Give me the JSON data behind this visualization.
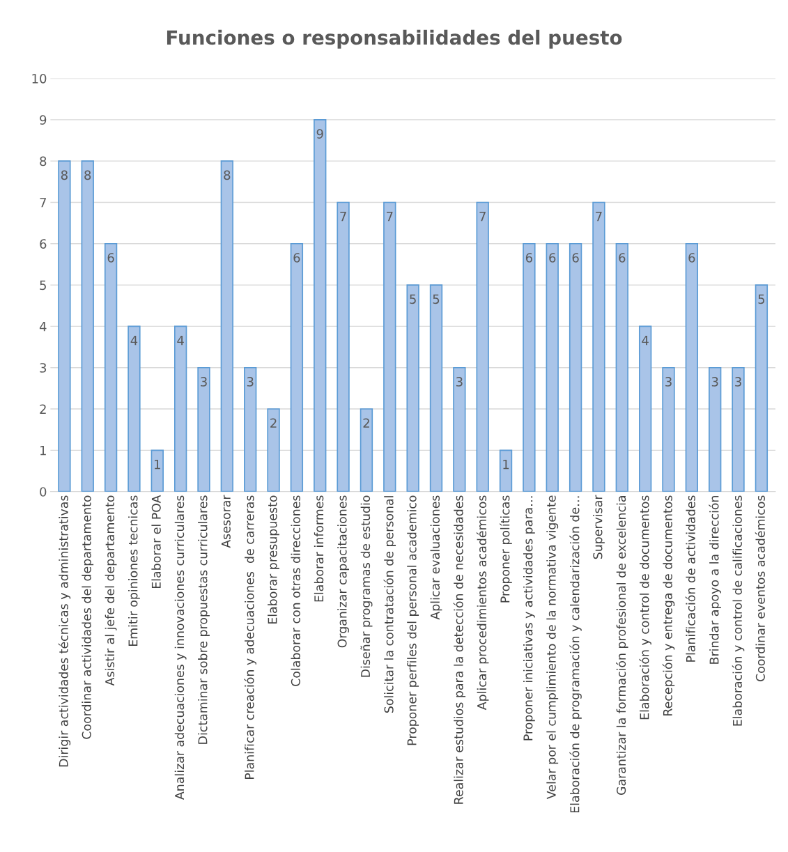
{
  "chart_data": {
    "type": "bar",
    "title": "Funciones o responsabilidades del puesto",
    "categories": [
      "Dirigir actividades técnicas y administrativas",
      "Coordinar actividades del departamento",
      "Asistir al jefe del departamento",
      "Emitir opiniones tecnicas",
      "Elaborar el POA",
      "Analizar adecuaciones y innovaciones curriculares",
      "Dictaminar sobre propuestas curriculares",
      "Asesorar",
      "Planificar creación y adecuaciones  de carreras",
      "Elaborar presupuesto",
      "Colaborar con otras direcciones",
      "Elaborar informes",
      "Organizar capacitaciones",
      "Diseñar programas de estudio",
      "Solicitar la contratación de personal",
      "Proponer perfiles del personal academico",
      "Aplicar evaluaciones",
      "Realizar estudios para la detección de necesidades",
      "Aplicar procedimientos académicos",
      "Proponer políticas",
      "Proponer iniciativas y actividades para…",
      "Velar por el cumplimiento de la normativa vigente",
      "Elaboración de programación y calendarización de…",
      "Supervisar",
      "Garantizar la formación profesional de excelencia",
      "Elaboración y control de documentos",
      "Recepción y entrega de documentos",
      "Planificación de actividades",
      "Brindar apoyo a la dirección",
      "Elaboración y control de calificaciones",
      "Coordinar eventos académicos"
    ],
    "values": [
      8,
      8,
      6,
      4,
      1,
      4,
      3,
      8,
      3,
      2,
      6,
      9,
      7,
      2,
      7,
      5,
      5,
      3,
      7,
      1,
      6,
      6,
      6,
      7,
      6,
      4,
      3,
      6,
      3,
      3,
      5
    ],
    "color": "#a9c4e8",
    "ylim": [
      0,
      10
    ],
    "yticks": [
      0,
      1,
      2,
      3,
      4,
      5,
      6,
      7,
      8,
      9,
      10
    ],
    "grid": "y",
    "data_labels": true
  }
}
